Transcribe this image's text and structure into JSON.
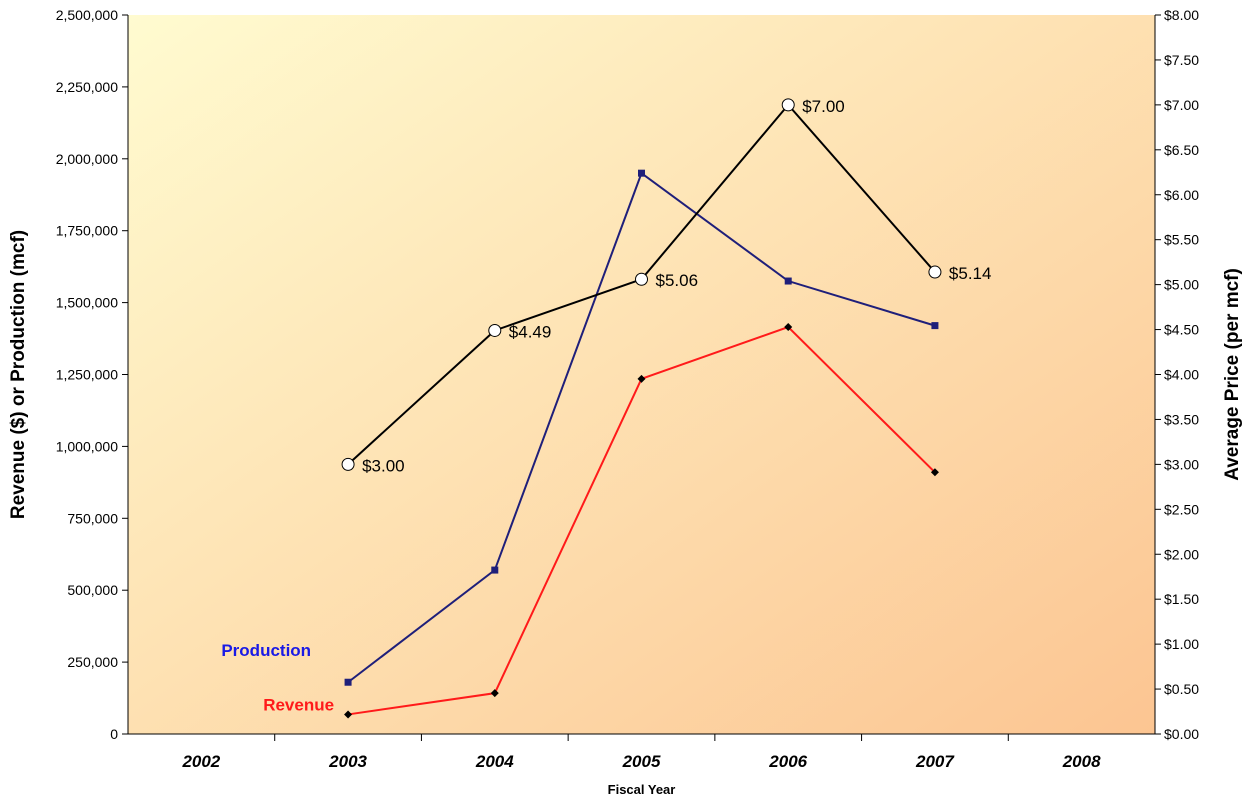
{
  "chart_data": {
    "type": "line",
    "xlabel": "Fiscal Year",
    "ylabel": "Revenue ($) or Production (mcf)",
    "y2label": "Average Price (per mcf)",
    "categories": [
      "2002",
      "2003",
      "2004",
      "2005",
      "2006",
      "2007",
      "2008"
    ],
    "ylim": [
      0,
      2500000
    ],
    "y2lim": [
      0,
      8
    ],
    "yticks": [
      "0",
      "250,000",
      "500,000",
      "750,000",
      "1,000,000",
      "1,250,000",
      "1,500,000",
      "1,750,000",
      "2,000,000",
      "2,250,000",
      "2,500,000"
    ],
    "y2ticks": [
      "$0.00",
      "$0.50",
      "$1.00",
      "$1.50",
      "$2.00",
      "$2.50",
      "$3.00",
      "$3.50",
      "$4.00",
      "$4.50",
      "$5.00",
      "$5.50",
      "$6.00",
      "$6.50",
      "$7.00",
      "$7.50",
      "$8.00"
    ],
    "grid": false,
    "series": [
      {
        "name": "Production",
        "axis": "left",
        "color": "#1f1f7a",
        "label_color": "#1a1ae6",
        "marker": "square",
        "x": [
          "2003",
          "2004",
          "2005",
          "2006",
          "2007"
        ],
        "values": [
          180000,
          570000,
          1950000,
          1575000,
          1420000
        ]
      },
      {
        "name": "Revenue",
        "axis": "left",
        "color": "#ff1a1a",
        "label_color": "#ff1a1a",
        "marker": "diamond",
        "x": [
          "2003",
          "2004",
          "2005",
          "2006",
          "2007"
        ],
        "values": [
          68000,
          142000,
          1235000,
          1415000,
          910000
        ]
      },
      {
        "axis": "right",
        "color": "#000000",
        "marker": "circle",
        "x": [
          "2003",
          "2004",
          "2005",
          "2006",
          "2007"
        ],
        "values": [
          3.0,
          4.49,
          5.06,
          7.0,
          5.14
        ],
        "labels": [
          "$3.00",
          "$4.49",
          "$5.06",
          "$7.00",
          "$5.14"
        ]
      }
    ],
    "background": {
      "gradient_from": "#fffbd0",
      "gradient_to": "#fcc592"
    }
  }
}
